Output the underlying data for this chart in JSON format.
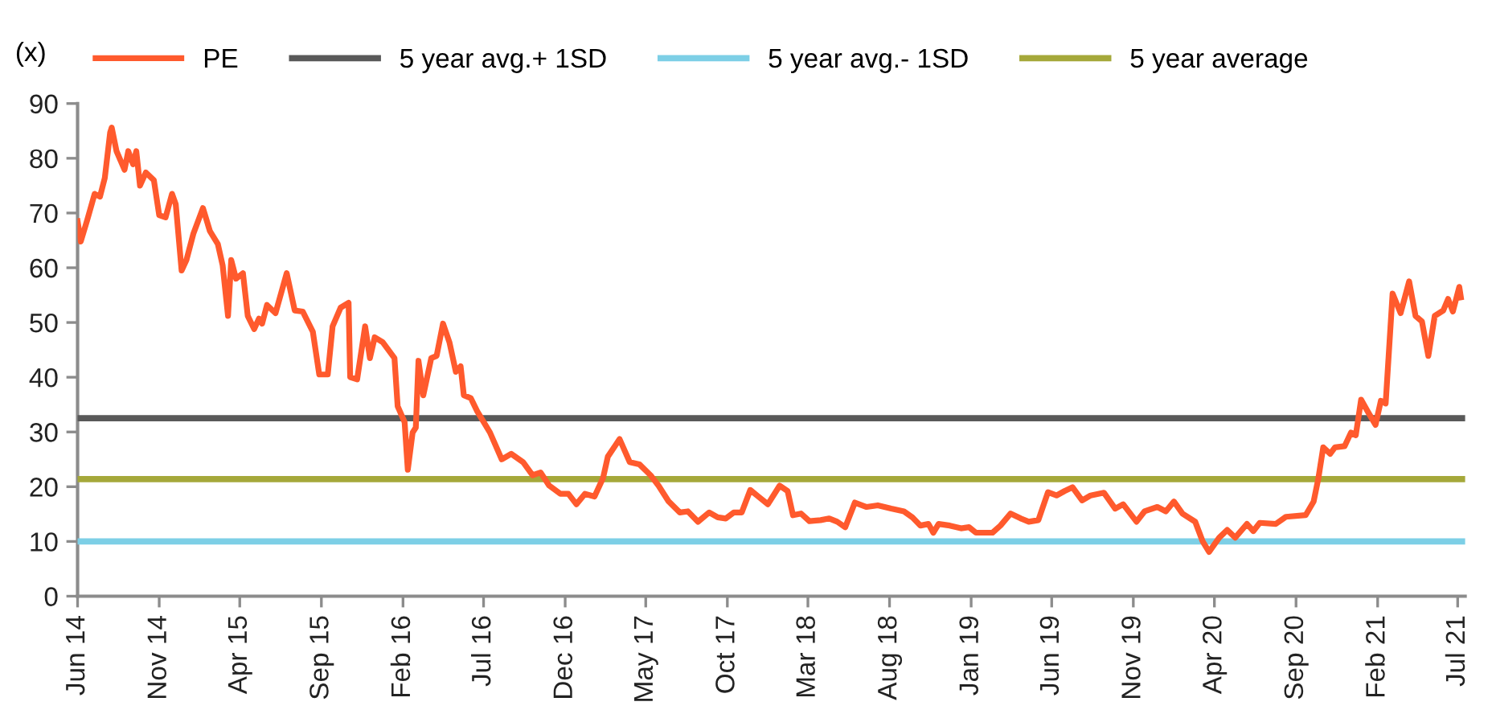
{
  "chart_data": {
    "type": "line",
    "ylabel": "(x)",
    "legend": "top",
    "grid": false,
    "marker": "none",
    "line_style": "solid",
    "ylim": [
      0,
      90
    ],
    "yticks": [
      0,
      10,
      20,
      30,
      40,
      50,
      60,
      70,
      80,
      90
    ],
    "xlim": [
      "2014-06-01",
      "2021-07-15"
    ],
    "xticks": [
      {
        "value": "2014-06-01",
        "label": "Jun 14"
      },
      {
        "value": "2014-11-01",
        "label": "Nov 14"
      },
      {
        "value": "2015-04-01",
        "label": "Apr 15"
      },
      {
        "value": "2015-09-01",
        "label": "Sep 15"
      },
      {
        "value": "2016-02-01",
        "label": "Feb 16"
      },
      {
        "value": "2016-07-01",
        "label": "Jul 16"
      },
      {
        "value": "2016-12-01",
        "label": "Dec 16"
      },
      {
        "value": "2017-05-01",
        "label": "May 17"
      },
      {
        "value": "2017-10-01",
        "label": "Oct 17"
      },
      {
        "value": "2018-03-01",
        "label": "Mar 18"
      },
      {
        "value": "2018-08-01",
        "label": "Aug 18"
      },
      {
        "value": "2019-01-01",
        "label": "Jan 19"
      },
      {
        "value": "2019-06-01",
        "label": "Jun 19"
      },
      {
        "value": "2019-11-01",
        "label": "Nov 19"
      },
      {
        "value": "2020-04-01",
        "label": "Apr 20"
      },
      {
        "value": "2020-09-01",
        "label": "Sep 20"
      },
      {
        "value": "2021-02-01",
        "label": "Feb 21"
      },
      {
        "value": "2021-07-01",
        "label": "Jul 21"
      }
    ],
    "series": [
      {
        "name": "PE",
        "color": "#ff5a2d",
        "x": [
          "2014-06-01",
          "2014-06-07",
          "2014-06-19",
          "2014-07-03",
          "2014-07-13",
          "2014-07-22",
          "2014-08-01",
          "2014-08-04",
          "2014-08-13",
          "2014-08-28",
          "2014-09-04",
          "2014-09-13",
          "2014-09-19",
          "2014-09-26",
          "2014-10-07",
          "2014-10-22",
          "2014-11-01",
          "2014-11-13",
          "2014-11-25",
          "2014-12-02",
          "2014-12-13",
          "2014-12-22",
          "2015-01-04",
          "2015-01-22",
          "2015-02-04",
          "2015-02-19",
          "2015-02-28",
          "2015-03-10",
          "2015-03-16",
          "2015-03-25",
          "2015-04-07",
          "2015-04-16",
          "2015-04-28",
          "2015-05-07",
          "2015-05-13",
          "2015-05-22",
          "2015-06-07",
          "2015-06-28",
          "2015-07-13",
          "2015-07-28",
          "2015-08-16",
          "2015-08-28",
          "2015-09-13",
          "2015-09-22",
          "2015-10-07",
          "2015-10-22",
          "2015-10-25",
          "2015-11-07",
          "2015-11-22",
          "2015-12-01",
          "2015-12-10",
          "2015-12-25",
          "2016-01-16",
          "2016-01-22",
          "2016-02-04",
          "2016-02-10",
          "2016-02-19",
          "2016-02-25",
          "2016-03-01",
          "2016-03-10",
          "2016-03-25",
          "2016-04-04",
          "2016-04-16",
          "2016-04-28",
          "2016-05-10",
          "2016-05-19",
          "2016-05-25",
          "2016-06-07",
          "2016-06-19",
          "2016-07-13",
          "2016-08-04",
          "2016-08-22",
          "2016-09-13",
          "2016-10-01",
          "2016-10-16",
          "2016-11-01",
          "2016-11-22",
          "2016-12-07",
          "2016-12-22",
          "2017-01-07",
          "2017-01-25",
          "2017-02-10",
          "2017-02-19",
          "2017-03-13",
          "2017-04-01",
          "2017-04-19",
          "2017-05-10",
          "2017-05-25",
          "2017-06-13",
          "2017-07-04",
          "2017-07-19",
          "2017-08-07",
          "2017-08-28",
          "2017-09-13",
          "2017-09-28",
          "2017-10-13",
          "2017-10-28",
          "2017-11-13",
          "2017-11-28",
          "2017-12-16",
          "2018-01-07",
          "2018-01-22",
          "2018-02-01",
          "2018-02-16",
          "2018-03-04",
          "2018-03-25",
          "2018-04-10",
          "2018-04-25",
          "2018-05-10",
          "2018-05-28",
          "2018-06-19",
          "2018-07-10",
          "2018-08-04",
          "2018-08-28",
          "2018-09-13",
          "2018-09-28",
          "2018-10-13",
          "2018-10-22",
          "2018-11-01",
          "2018-11-22",
          "2018-12-13",
          "2018-12-28",
          "2019-01-10",
          "2019-02-10",
          "2019-02-25",
          "2019-03-16",
          "2019-04-04",
          "2019-04-19",
          "2019-05-07",
          "2019-05-25",
          "2019-06-10",
          "2019-06-25",
          "2019-07-10",
          "2019-07-28",
          "2019-08-13",
          "2019-09-07",
          "2019-09-28",
          "2019-10-13",
          "2019-11-07",
          "2019-11-22",
          "2019-12-16",
          "2020-01-01",
          "2020-01-16",
          "2020-02-01",
          "2020-02-25",
          "2020-03-10",
          "2020-03-22",
          "2020-04-10",
          "2020-04-25",
          "2020-05-10",
          "2020-06-01",
          "2020-06-13",
          "2020-06-25",
          "2020-07-25",
          "2020-08-13",
          "2020-09-19",
          "2020-10-04",
          "2020-10-13",
          "2020-10-22",
          "2020-11-04",
          "2020-11-13",
          "2020-12-01",
          "2020-12-13",
          "2020-12-22",
          "2021-01-01",
          "2021-01-13",
          "2021-01-28",
          "2021-02-07",
          "2021-02-16",
          "2021-03-01",
          "2021-03-16",
          "2021-04-01",
          "2021-04-13",
          "2021-04-25",
          "2021-05-07",
          "2021-05-19",
          "2021-06-04",
          "2021-06-13",
          "2021-06-22",
          "2021-07-04",
          "2021-07-07"
        ],
        "values": [
          68.5,
          64.8,
          68.7,
          73.5,
          73,
          76.4,
          84.7,
          85.6,
          81.3,
          77.9,
          81.3,
          78.9,
          81.3,
          75,
          77.4,
          76,
          69.6,
          69.2,
          73.5,
          71.6,
          59.5,
          61.4,
          66.2,
          70.9,
          66.7,
          64.3,
          60.4,
          51.2,
          61.4,
          58,
          59,
          51.2,
          48.8,
          50.7,
          49.8,
          53.2,
          51.7,
          59,
          52.2,
          52,
          48.3,
          40.5,
          40.5,
          49.3,
          52.7,
          53.6,
          40,
          39.6,
          49.3,
          43.5,
          47.3,
          46.4,
          43.5,
          34.7,
          31.8,
          23.1,
          29.9,
          30.8,
          43,
          36.7,
          43.5,
          43.9,
          49.8,
          46.4,
          41,
          42,
          36.7,
          36.2,
          33.8,
          29.9,
          25,
          26,
          24.5,
          22.1,
          22.6,
          20.2,
          18.7,
          18.7,
          16.8,
          18.7,
          18.2,
          21.6,
          25.5,
          28.7,
          24.5,
          24.1,
          22.1,
          20.2,
          17.3,
          15.3,
          15.5,
          13.6,
          15.3,
          14.4,
          14.2,
          15.3,
          15.3,
          19.4,
          18.2,
          16.8,
          20.2,
          19.2,
          14.8,
          15.1,
          13.7,
          13.9,
          14.2,
          13.6,
          12.6,
          17.1,
          16.3,
          16.6,
          16,
          15.5,
          14.4,
          12.9,
          13.2,
          11.6,
          13.2,
          12.9,
          12.4,
          12.6,
          11.6,
          11.6,
          12.9,
          15.1,
          14.2,
          13.6,
          13.9,
          19,
          18.4,
          19.2,
          19.9,
          17.5,
          18.4,
          18.9,
          16,
          16.8,
          13.6,
          15.5,
          16.3,
          15.5,
          17.3,
          15.1,
          13.6,
          10,
          8.1,
          10.7,
          12.1,
          10.7,
          13.2,
          11.9,
          13.4,
          13.2,
          14.5,
          14.8,
          17.3,
          21.6,
          27.2,
          26,
          27.2,
          27.4,
          29.9,
          29.4,
          35.9,
          33.8,
          31.3,
          35.7,
          35.2,
          55.3,
          51.7,
          57.5,
          51.2,
          50.2,
          43.9,
          51.2,
          52.2,
          54.3,
          52,
          56.5,
          54.6
        ]
      },
      {
        "name": "5 year avg.+ 1SD",
        "color": "#595959",
        "x": [
          "2014-06-01",
          "2021-07-10"
        ],
        "values": [
          32.5,
          32.5
        ]
      },
      {
        "name": "5 year avg.- 1SD",
        "color": "#7dcfe6",
        "x": [
          "2014-06-01",
          "2021-07-10"
        ],
        "values": [
          10,
          10
        ]
      },
      {
        "name": "5 year average",
        "color": "#a5a83a",
        "x": [
          "2014-06-01",
          "2021-07-10"
        ],
        "values": [
          21.4,
          21.4
        ]
      }
    ]
  }
}
